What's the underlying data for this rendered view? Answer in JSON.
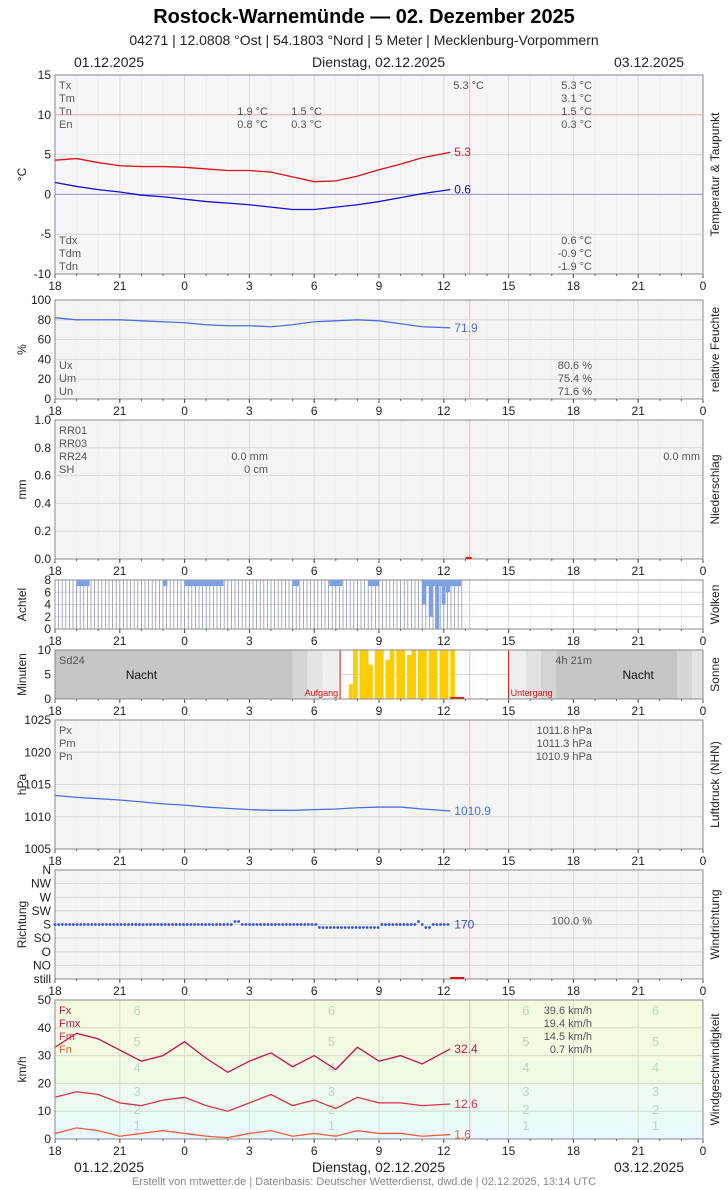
{
  "header": {
    "title": "Rostock-Warnemünde  —  02. Dezember 2025",
    "subtitle": "04271  |  12.0808 °Ost  |  54.1803 °Nord  |  5 Meter  |  Mecklenburg-Vorpommern",
    "date_left": "01.12.2025",
    "date_center": "Dienstag, 02.12.2025",
    "date_right": "03.12.2025"
  },
  "footer": "Erstellt von mtwetter.de | Datenbasis: Deutscher Wetterdienst, dwd.de | 02.12.2025, 13:14 UTC",
  "colors": {
    "red": "#e01010",
    "blue": "#1010d0",
    "lightblue": "#4a6fe0",
    "grid": "#d8d8d8",
    "sun": "#ffcc00",
    "night": "#c4c4c4",
    "pink": "#c8104c",
    "orange": "#f06030"
  },
  "chart_data": [
    {
      "id": "temp",
      "type": "line",
      "side_label": "Temperatur & Taupunkt",
      "ylabel": "°C",
      "ylim": [
        -10,
        15
      ],
      "yticks": [
        "15",
        "10",
        "5",
        "0",
        "-5",
        "-10"
      ],
      "xlabel": "",
      "xticks": [
        "18",
        "21",
        "0",
        "3",
        "6",
        "9",
        "12",
        "15",
        "18",
        "21",
        "0",
        "3",
        "6"
      ],
      "series": [
        {
          "color": "#e01010",
          "end_label": "5.3",
          "x": [
            18,
            19,
            20,
            21,
            22,
            23,
            24,
            25,
            26,
            27,
            28,
            29,
            30,
            31,
            32,
            33,
            34,
            35,
            36.3
          ],
          "y": [
            4.3,
            4.5,
            4.0,
            3.6,
            3.5,
            3.5,
            3.4,
            3.2,
            3.0,
            3.0,
            2.8,
            2.2,
            1.6,
            1.7,
            2.3,
            3.1,
            3.8,
            4.6,
            5.3
          ]
        },
        {
          "color": "#1010d0",
          "end_label": "0.6",
          "x": [
            18,
            19,
            20,
            21,
            22,
            23,
            24,
            25,
            26,
            27,
            28,
            29,
            30,
            31,
            32,
            33,
            34,
            35,
            36.3
          ],
          "y": [
            1.5,
            1.0,
            0.6,
            0.3,
            -0.1,
            -0.3,
            -0.6,
            -0.9,
            -1.1,
            -1.3,
            -1.6,
            -1.9,
            -1.9,
            -1.6,
            -1.3,
            -0.9,
            -0.4,
            0.1,
            0.6
          ]
        }
      ],
      "annot_left": [
        "Tx",
        "Tm",
        "Tn",
        "En"
      ],
      "annot_mid": [
        [
          "1.9 °C",
          "0.8 °C"
        ],
        [
          "1.5 °C",
          "0.3 °C"
        ]
      ],
      "annot_right": [
        "5.3 °C",
        "3.1 °C",
        "1.5 °C",
        "0.3 °C"
      ],
      "annot_extra": "5.3 °C",
      "annot_left_bottom": [
        "Tdx",
        "Tdm",
        "Tdn"
      ],
      "annot_right_bottom": [
        "0.6 °C",
        "-0.9 °C",
        "-1.9 °C"
      ]
    },
    {
      "id": "hum",
      "type": "line",
      "side_label": "relative Feuchte",
      "ylabel": "%",
      "ylim": [
        0,
        100
      ],
      "yticks": [
        "100",
        "80",
        "60",
        "40",
        "20",
        "0"
      ],
      "series": [
        {
          "color": "#4a6fe0",
          "end_label": "71.9",
          "x": [
            18,
            19,
            20,
            21,
            22,
            23,
            24,
            25,
            26,
            27,
            28,
            29,
            30,
            31,
            32,
            33,
            34,
            35,
            36.3
          ],
          "y": [
            82,
            80,
            80,
            80,
            79,
            78,
            77,
            75,
            74,
            74,
            73,
            75,
            78,
            79,
            80,
            79,
            76,
            73,
            71.9
          ]
        }
      ],
      "annot_left": [
        "Ux",
        "Um",
        "Un"
      ],
      "annot_right": [
        "80.6 %",
        "75.4 %",
        "71.6 %"
      ]
    },
    {
      "id": "rain",
      "type": "bar",
      "side_label": "Niederschlag",
      "ylabel": "mm",
      "ylim": [
        0,
        1.0
      ],
      "yticks": [
        "1.0",
        "0.8",
        "0.6",
        "0.4",
        "0.2",
        "0.0"
      ],
      "annot_left": [
        "RR01",
        "RR03",
        "RR24",
        "SH"
      ],
      "annot_mid": [
        "0.0 mm",
        "0 cm"
      ],
      "annot_right": "0.0 mm"
    },
    {
      "id": "cloud",
      "type": "bar",
      "side_label": "Wolken",
      "ylabel": "Achtel",
      "ylim": [
        0,
        8
      ],
      "yticks": [
        "8",
        "6",
        "4",
        "2",
        "0"
      ],
      "cover_x": [
        18,
        36.9
      ],
      "full_ranges": [
        [
          19.0,
          19.6
        ],
        [
          23.0,
          23.2
        ],
        [
          24.0,
          25.8
        ],
        [
          29.0,
          29.3
        ],
        [
          30.7,
          31.3
        ],
        [
          32.5,
          33.0
        ],
        [
          35.0,
          36.8
        ]
      ],
      "deep_dips": {
        "x": [
          35.0,
          35.3,
          35.6,
          35.9,
          36.1,
          36.4
        ],
        "y": [
          4,
          2,
          0,
          4,
          6,
          7
        ]
      }
    },
    {
      "id": "sun",
      "type": "bar",
      "side_label": "Sonne",
      "ylabel": "Minuten",
      "ylim": [
        0,
        10
      ],
      "yticks": [
        "10",
        "5",
        "0"
      ],
      "sunrise_x": 31.2,
      "sunset_x": 39.0,
      "sunrise_label": "Aufgang",
      "sunset_label": "Untergang",
      "night_label": "Nacht",
      "sd_label": "Sd24",
      "sd_value": "4h 21m",
      "sun_x": [
        31.8,
        32.1,
        32.3,
        32.5,
        32.8,
        33.0,
        33.3,
        33.5,
        33.8,
        34.0,
        34.3,
        34.5,
        34.8,
        35.0,
        35.3,
        35.5,
        35.8,
        36.0,
        36.3
      ],
      "sun_y": [
        10,
        10,
        10,
        7,
        10,
        10,
        8,
        10,
        10,
        10,
        9,
        10,
        10,
        10,
        10,
        10,
        10,
        10,
        10
      ]
    },
    {
      "id": "press",
      "type": "line",
      "side_label": "Luftdruck (NHN)",
      "ylabel": "hPa",
      "ylim": [
        1005,
        1025
      ],
      "yticks": [
        "1025",
        "1020",
        "1015",
        "1010",
        "1005"
      ],
      "series": [
        {
          "color": "#4a6fe0",
          "end_label": "1010.9",
          "x": [
            18,
            19,
            20,
            21,
            22,
            23,
            24,
            25,
            26,
            27,
            28,
            29,
            30,
            31,
            32,
            33,
            34,
            35,
            36.3
          ],
          "y": [
            1013.3,
            1013.0,
            1012.8,
            1012.6,
            1012.3,
            1012.0,
            1011.8,
            1011.5,
            1011.3,
            1011.1,
            1011.0,
            1011.0,
            1011.1,
            1011.2,
            1011.4,
            1011.5,
            1011.5,
            1011.2,
            1010.9
          ]
        }
      ],
      "annot_left": [
        "Px",
        "Pm",
        "Pn"
      ],
      "annot_right": [
        "1011.8 hPa",
        "1011.3 hPa",
        "1010.9 hPa"
      ]
    },
    {
      "id": "winddir",
      "type": "scatter",
      "side_label": "Windrichtung",
      "ylabel": "Richtung",
      "yticks": [
        "N",
        "NW",
        "W",
        "SW",
        "S",
        "SO",
        "O",
        "NO",
        "still"
      ],
      "end_label": "170",
      "annot_right": "100.0 %",
      "dots_x": [
        18,
        36.3
      ],
      "dots_level": "S"
    },
    {
      "id": "wind",
      "type": "line",
      "side_label": "Windgeschwindigkeit",
      "ylabel": "km/h",
      "ylim": [
        0,
        50
      ],
      "yticks": [
        "50",
        "40",
        "30",
        "20",
        "10",
        "0"
      ],
      "bft_labels": [
        "6",
        "5",
        "4",
        "3",
        "2",
        "1"
      ],
      "series": [
        {
          "color": "#c8104c",
          "end_label": "32.4",
          "x": [
            18,
            19,
            20,
            21,
            22,
            23,
            24,
            25,
            26,
            27,
            28,
            29,
            30,
            31,
            32,
            33,
            34,
            35,
            36.3
          ],
          "y": [
            33,
            38,
            36,
            32,
            28,
            30,
            35,
            29,
            24,
            28,
            31,
            26,
            30,
            25,
            33,
            28,
            30,
            27,
            32.4
          ]
        },
        {
          "color": "#d83050",
          "end_label": "12.6",
          "x": [
            18,
            19,
            20,
            21,
            22,
            23,
            24,
            25,
            26,
            27,
            28,
            29,
            30,
            31,
            32,
            33,
            34,
            35,
            36.3
          ],
          "y": [
            15,
            17,
            16,
            13,
            12,
            14,
            15,
            12,
            10,
            13,
            16,
            12,
            14,
            11,
            15,
            13,
            13,
            12,
            12.6
          ]
        },
        {
          "color": "#f06030",
          "end_label": "1.6",
          "x": [
            18,
            19,
            20,
            21,
            22,
            23,
            24,
            25,
            26,
            27,
            28,
            29,
            30,
            31,
            32,
            33,
            34,
            35,
            36.3
          ],
          "y": [
            2,
            4,
            3,
            1,
            2,
            3,
            2,
            1,
            0.5,
            2,
            3,
            1,
            2,
            1,
            3,
            2,
            2,
            1,
            1.6
          ]
        }
      ],
      "annot_left": [
        "Fx",
        "Fmx",
        "Fm",
        "Fn"
      ],
      "annot_right": [
        "39.6 km/h",
        "19.4 km/h",
        "14.5 km/h",
        "0.7 km/h"
      ]
    }
  ]
}
